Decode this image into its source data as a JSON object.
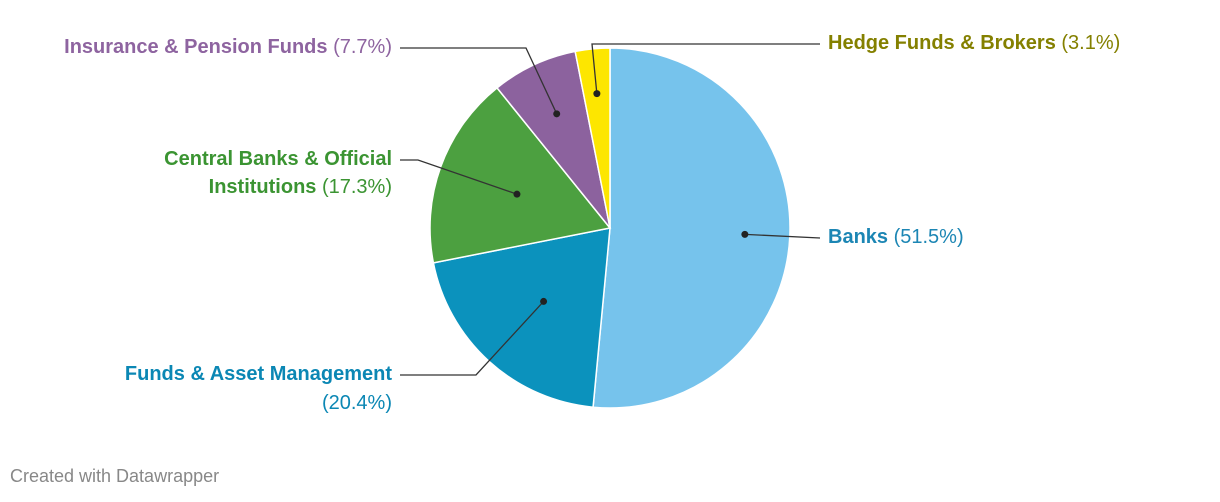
{
  "chart_data": {
    "type": "pie",
    "title": "",
    "slices": [
      {
        "label": "Banks",
        "value": 51.5,
        "display": "(51.5%)",
        "color": "#76c3ec",
        "label_color": "#1c86b4"
      },
      {
        "label": "Funds & Asset Management",
        "value": 20.4,
        "display": "(20.4%)",
        "color": "#0b92bd",
        "label_color": "#0b87b4"
      },
      {
        "label": "Central Banks & Official Institutions",
        "value": 17.3,
        "display": "(17.3%)",
        "color": "#4ca040",
        "label_color": "#3b9432"
      },
      {
        "label": "Insurance & Pension Funds",
        "value": 7.7,
        "display": "(7.7%)",
        "color": "#8c629e",
        "label_color": "#8e64a0"
      },
      {
        "label": "Hedge Funds & Brokers",
        "value": 3.1,
        "display": "(3.1%)",
        "color": "#fde600",
        "label_color": "#848000"
      }
    ]
  },
  "footer": {
    "credit": "Created with Datawrapper"
  }
}
